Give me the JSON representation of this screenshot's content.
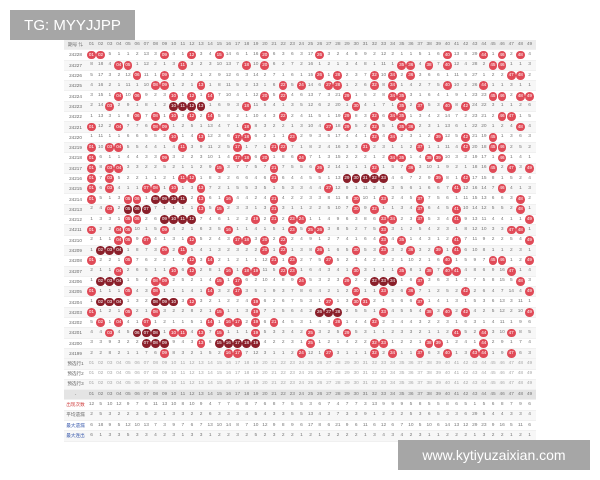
{
  "watermarks": {
    "top": "TG: MYYJJPP",
    "bottom": "www.kytiyuzaixian.com"
  },
  "colors": {
    "hit": "#e04a57",
    "consecutive_hit": "#8a1f2a",
    "alt_row": "#f7f7f7"
  },
  "header": {
    "period_label": "期号 ⇅",
    "columns": [
      "01",
      "02",
      "03",
      "04",
      "05",
      "06",
      "07",
      "08",
      "09",
      "10",
      "11",
      "12",
      "13",
      "14",
      "15",
      "16",
      "17",
      "18",
      "19",
      "20",
      "21",
      "22",
      "23",
      "24",
      "25",
      "26",
      "27",
      "28",
      "29",
      "30",
      "31",
      "32",
      "33",
      "34",
      "35",
      "36",
      "37",
      "38",
      "39",
      "40",
      "41",
      "42",
      "43",
      "44",
      "45",
      "46",
      "47",
      "48",
      "49"
    ]
  },
  "legend_note": "o = hit (shows column number), x = consecutive hit (dark ball), number = omission count",
  "rows": [
    {
      "period": "24228",
      "cells": "o o 5 1 1 2 13 3 o 4 1 o 3 4 o 14 6 1 16 o 6 3 6 3 17 o 3 2 4 5 9 2 12 2 1 1 5 1 6 o 13 8 29 o 1 o 2 o 4"
    },
    {
      "period": "24227",
      "cells": "8 18 4 o o 1 12 2 1 3 o 3 2 3 10 13 7 o 10 o 6 2 7 2 16 1 2 1 3 4 8 1 11 1 o o 4 o 7 o 12 4 28 2 o o 1 1 3"
    },
    {
      "period": "24226",
      "cells": "5 17 3 2 12 o 11 1 o 2 3 2 1 2 9 12 6 3 14 2 7 1 6 1 15 o 1 o 2 3 7 o 10 o 2 o 3 6 6 1 11 5 27 1 2 2 o o 2"
    },
    {
      "period": "24225",
      "cells": "4 16 2 1 11 1 10 o o 1 2 1 o 1 8 11 5 2 13 1 6 o 5 o 14 6 o o 1 2 6 o 8 o 1 4 2 7 5 o 10 2 26 o 1 1 3 1 1"
    },
    {
      "period": "24224",
      "cells": "3 15 1 o 10 o 9 2 3 o 1 o 1 o 7 10 4 1 12 o 5 o 4 6 13 7 3 21 o 1 5 2 8 o o 3 1 6 4 1 9 1 23 23 o o 2 o o"
    },
    {
      "period": "24223",
      "cells": "2 14 o 2 9 1 8 1 2 x x x x 1 6 9 3 o 11 5 4 1 3 5 12 6 2 20 1 o 4 1 7 1 o 2 o 5 3 o 8 o 24 22 3 1 1 2 6"
    },
    {
      "period": "24222",
      "cells": "1 13 3 1 8 o 7 o 1 o 3 o 2 o 5 8 2 1 10 4 3 o 2 4 11 5 1 19 o 8 3 o 6 o o 1 3 4 2 14 7 2 23 21 2 o o 1 5"
    },
    {
      "period": "24221",
      "cells": "o 12 2 o 7 7 6 o o 1 2 5 1 13 4 7 1 o 8 3 2 2 1 3 10 4 o 18 o 5 2 o 5 1 o o 2 3 1 13 6 1 22 20 1 2 4 o 4"
    },
    {
      "period": "24220",
      "cells": "1 11 1 1 6 6 5 5 2 o 1 4 o 12 3 6 o o 6 2 1 1 o 2 9 3 5 17 4 4 1 o 4 o 2 3 1 2 o 12 5 o 21 19 o 1 3 6 3"
    },
    {
      "period": "24219",
      "cells": "o 10 o o 5 5 4 4 1 4 o 3 9 11 2 5 o 1 7 1 o o 7 1 8 2 4 16 3 3 o 2 3 1 1 2 o 1 1 11 4 o 20 18 o o 2 5 2"
    },
    {
      "period": "24218",
      "cells": "o 6 1 1 4 4 3 3 o 3 2 2 3 10 1 4 o o 6 o 1 8 6 o 7 1 3 15 2 2 2 1 2 o o 1 4 o o 10 3 2 19 17 1 o 1 4 1"
    },
    {
      "period": "24217",
      "cells": "o 8 o o 3 3 2 2 5 2 1 1 2 9 o 3 7 7 5 7 o 7 5 5 6 o 2 14 1 1 1 o 1 5 7 o 3 10 1 9 2 1 18 16 o 2 o 3 o"
    },
    {
      "period": "24216",
      "cells": "o 7 o 5 2 2 1 1 2 1 o o 1 8 3 2 6 6 4 6 o 6 4 4 5 5 1 13 x x x x x 4 6 7 2 9 o 8 1 o 17 15 8 1 5 2 4"
    },
    {
      "period": "24215",
      "cells": "o 6 o 4 1 1 o o 1 o 1 3 o 7 2 1 5 5 3 5 1 5 3 3 4 4 o 12 9 1 11 2 1 3 5 6 1 6 6 7 o 12 16 14 7 o 4 1 3"
    },
    {
      "period": "24214",
      "cells": "o 5 1 3 o o 1 x x x x 2 o 6 1 o 4 4 2 4 o 4 2 2 3 3 8 11 8 o 10 1 o 2 4 5 o 7 5 6 1 11 15 13 6 6 3 o 2"
    },
    {
      "period": "24213",
      "cells": "2 4 o 2 x x x 7 1 1 1 1 o 5 o 2 3 3 1 3 o 3 1 1 2 2 5 10 7 o 9 o 1 1 3 4 o 6 4 5 o 10 14 12 5 5 2 o 1"
    },
    {
      "period": "24212",
      "cells": "1 3 3 1 o o 2 6 x x x x 7 4 6 1 2 2 o 2 o 2 o o 1 1 4 9 6 3 8 6 o o 2 3 o 5 3 4 o 9 13 11 4 4 1 1 o"
    },
    {
      "period": "24211",
      "cells": "o 2 2 o o 10 1 5 o 4 2 1 6 3 5 o 1 1 4 1 5 1 o 5 o o 3 8 5 2 7 5 o 3 1 2 5 4 2 3 1 8 12 10 3 3 o o 1"
    },
    {
      "period": "24210",
      "cells": "2 1 1 o o 9 o 4 1 3 1 o 5 2 4 3 o o 3 o 2 o 2 4 9 1 2 7 4 1 6 4 o 4 o 1 4 3 1 2 o 7 11 9 2 2 5 4 o"
    },
    {
      "period": "24209",
      "cells": "1 x x x 1 8 7 3 o 2 o 1 4 1 3 2 3 2 2 o 1 o 1 3 8 o 1 6 5 o 5 3 o 3 2 o 3 2 o 1 o 6 10 8 1 1 2 3 1"
    },
    {
      "period": "24208",
      "cells": "o 2 2 1 o 7 6 2 2 1 7 o 3 o 2 1 2 1 1 12 o 1 o 2 7 5 o 5 2 1 4 2 2 2 1 10 2 1 6 o 1 5 9 7 o o 1 2 o"
    },
    {
      "period": "24207",
      "cells": "2 1 1 o 2 6 5 1 1 o 6 o 2 8 1 o 1 o o 11 5 o o 1 6 4 3 4 1 o 3 1 1 1 o 8 1 o 7 o o 4 8 6 9 16 o 1 4"
    },
    {
      "period": "24206",
      "cells": "1 x x x 1 5 4 o o 2 5 2 1 4 o 1 o 6 2 10 4 8 9 o 5 3 2 3 o 2 2 x x x 1 6 o 3 6 3 1 3 7 5 8 15 5 o 3"
    },
    {
      "period": "24205",
      "cells": "o 1 1 1 o 4 3 o 1 1 1 4 1 o 3 2 o 3 5 1 9 3 7 8 6 4 2 1 2 o 1 1 o 2 6 o 7 1 2 5 2 o 2 6 4 7 14 4 o"
    },
    {
      "period": "24204",
      "cells": "1 x x x 1 3 2 x x x 3 o 3 2 1 2 2 4 o 6 2 6 7 5 3 1 o 1 3 o o 2 1 5 6 6 o 1 4 1 3 1 5 3 6 13 3 11 1"
    },
    {
      "period": "24203",
      "cells": "o 1 2 1 o 2 1 o 3 2 2 8 2 1 o 1 1 3 o 7 1 5 6 4 2 x x x 2 5 5 1 o 4 5 5 4 o 3 o 2 o 4 2 5 12 2 10 o"
    },
    {
      "period": "24202",
      "cells": "5 o 1 o 4 1 o 1 2 1 1 5 1 o 1 o o 2 o 6 o 4 5 3 1 4 3 o 1 4 4 o 2 3 4 4 3 2 2 3 1 6 3 1 4 11 1 9 6"
    },
    {
      "period": "24201",
      "cells": "4 4 o 4 5 x x x 1 o o 4 o 7 o 1 1 1 o 5 3 3 4 2 o 3 2 5 o 5 3 1 1 2 3 3 2 1 1 2 o 5 2 o 3 10 o 8 5"
    },
    {
      "period": "24200",
      "cells": "3 3 9 3 2 2 x x x 9 4 3 o 6 x x x x x 4 2 2 3 1 o 1 2 1 4 2 2 o o 1 2 2 1 o o 1 2 4 1 o 2 9 1 7 4"
    },
    {
      "period": "24199",
      "cells": "2 2 8 2 1 1 7 6 o 8 3 2 1 5 2 o o 7 12 3 1 1 2 o 12 1 o 3 1 1 1 o 2 o 1 1 o 6 3 o 1 3 o o 1 9 o 6 3"
    }
  ],
  "preselect_rows": [
    {
      "label": "预选行1"
    },
    {
      "label": "预选行2"
    },
    {
      "label": "预选行3"
    }
  ],
  "separator_label": "-",
  "stats": [
    {
      "label": "出现次数",
      "style": "red",
      "values": [
        12,
        5,
        10,
        12,
        9,
        7,
        6,
        11,
        13,
        10,
        8,
        10,
        9,
        4,
        7,
        7,
        6,
        8,
        7,
        6,
        8,
        7,
        5,
        5,
        3,
        6,
        7,
        4,
        7,
        7,
        3,
        13,
        9,
        9,
        9,
        5,
        8,
        5,
        5,
        8,
        6,
        5,
        1,
        5,
        6,
        8,
        7,
        9,
        6
      ]
    },
    {
      "label": "平均遗漏",
      "style": "normal",
      "values": [
        2,
        5,
        3,
        2,
        2,
        3,
        5,
        2,
        1,
        3,
        3,
        2,
        2,
        6,
        3,
        3,
        3,
        4,
        5,
        4,
        3,
        3,
        5,
        5,
        13,
        4,
        3,
        7,
        3,
        3,
        9,
        1,
        2,
        2,
        2,
        5,
        3,
        6,
        5,
        3,
        3,
        6,
        29,
        5,
        4,
        4,
        3,
        3,
        4
      ]
    },
    {
      "label": "最大遗漏",
      "style": "blue",
      "values": [
        6,
        18,
        9,
        5,
        12,
        10,
        13,
        7,
        3,
        9,
        7,
        6,
        7,
        13,
        10,
        14,
        8,
        7,
        10,
        12,
        9,
        8,
        9,
        6,
        17,
        8,
        6,
        21,
        9,
        6,
        11,
        6,
        12,
        6,
        7,
        10,
        5,
        10,
        6,
        14,
        13,
        12,
        29,
        23,
        9,
        16,
        5,
        11,
        6
      ]
    },
    {
      "label": "最大连出",
      "style": "blue",
      "values": [
        6,
        1,
        3,
        3,
        5,
        3,
        3,
        4,
        2,
        3,
        1,
        3,
        3,
        1,
        2,
        2,
        3,
        2,
        5,
        2,
        3,
        2,
        2,
        1,
        2,
        1,
        2,
        2,
        2,
        2,
        1,
        3,
        4,
        3,
        4,
        2,
        3,
        1,
        1,
        2,
        2,
        2,
        1,
        3,
        2,
        2,
        1,
        2,
        1
      ]
    }
  ]
}
